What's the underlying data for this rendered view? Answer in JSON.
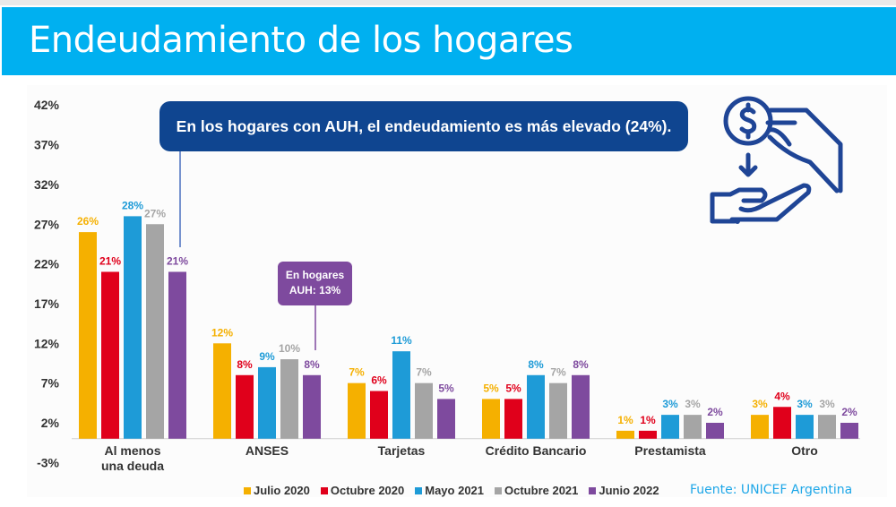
{
  "header": {
    "title": "Endeudamiento de los hogares"
  },
  "callouts": {
    "main": "En los hogares con AUH, el endeudamiento es más elevado (24%).",
    "auh_line1": "En hogares",
    "auh_line2": "AUH: 13%"
  },
  "source": "Fuente: UNICEF Argentina",
  "icon": "hand-giving-coin-icon",
  "colors": {
    "header": "#00B0F0",
    "callout_main": "#0F4590",
    "callout_auh": "#7E4A9E",
    "icon": "#1F4596"
  },
  "chart_data": {
    "type": "bar",
    "title": "",
    "xlabel": "",
    "ylabel": "",
    "ylim": [
      -3,
      42
    ],
    "yticks": [
      "42%",
      "37%",
      "32%",
      "27%",
      "22%",
      "17%",
      "12%",
      "7%",
      "2%",
      "-3%"
    ],
    "ytick_values": [
      42,
      37,
      32,
      27,
      22,
      17,
      12,
      7,
      2,
      -3
    ],
    "grid": false,
    "legend": "bottom",
    "categories": [
      [
        "Al menos",
        "una deuda"
      ],
      [
        "ANSES"
      ],
      [
        "Tarjetas"
      ],
      [
        "Crédito Bancario"
      ],
      [
        "Prestamista"
      ],
      [
        "Otro"
      ]
    ],
    "series": [
      {
        "name": "Julio 2020",
        "color": "#F5B000",
        "values": [
          26,
          12,
          7,
          5,
          1,
          3
        ],
        "labels": [
          "26%",
          "12%",
          "7%",
          "5%",
          "1%",
          "3%"
        ]
      },
      {
        "name": "Octubre 2020",
        "color": "#E0001B",
        "values": [
          21,
          8,
          6,
          5,
          1,
          4
        ],
        "labels": [
          "21%",
          "8%",
          "6%",
          "5%",
          "1%",
          "4%"
        ]
      },
      {
        "name": "Mayo 2021",
        "color": "#1E9BD7",
        "values": [
          28,
          9,
          11,
          8,
          3,
          3
        ],
        "labels": [
          "28%",
          "9%",
          "11%",
          "8%",
          "3%",
          "3%"
        ]
      },
      {
        "name": "Octubre 2021",
        "color": "#A5A5A5",
        "values": [
          27,
          10,
          7,
          7,
          3,
          3
        ],
        "labels": [
          "27%",
          "10%",
          "7%",
          "7%",
          "3%",
          "3%"
        ]
      },
      {
        "name": "Junio 2022",
        "color": "#7E4A9E",
        "values": [
          21,
          8,
          5,
          8,
          2,
          2
        ],
        "labels": [
          "21%",
          "8%",
          "5%",
          "8%",
          "2%",
          "2%"
        ]
      }
    ]
  }
}
